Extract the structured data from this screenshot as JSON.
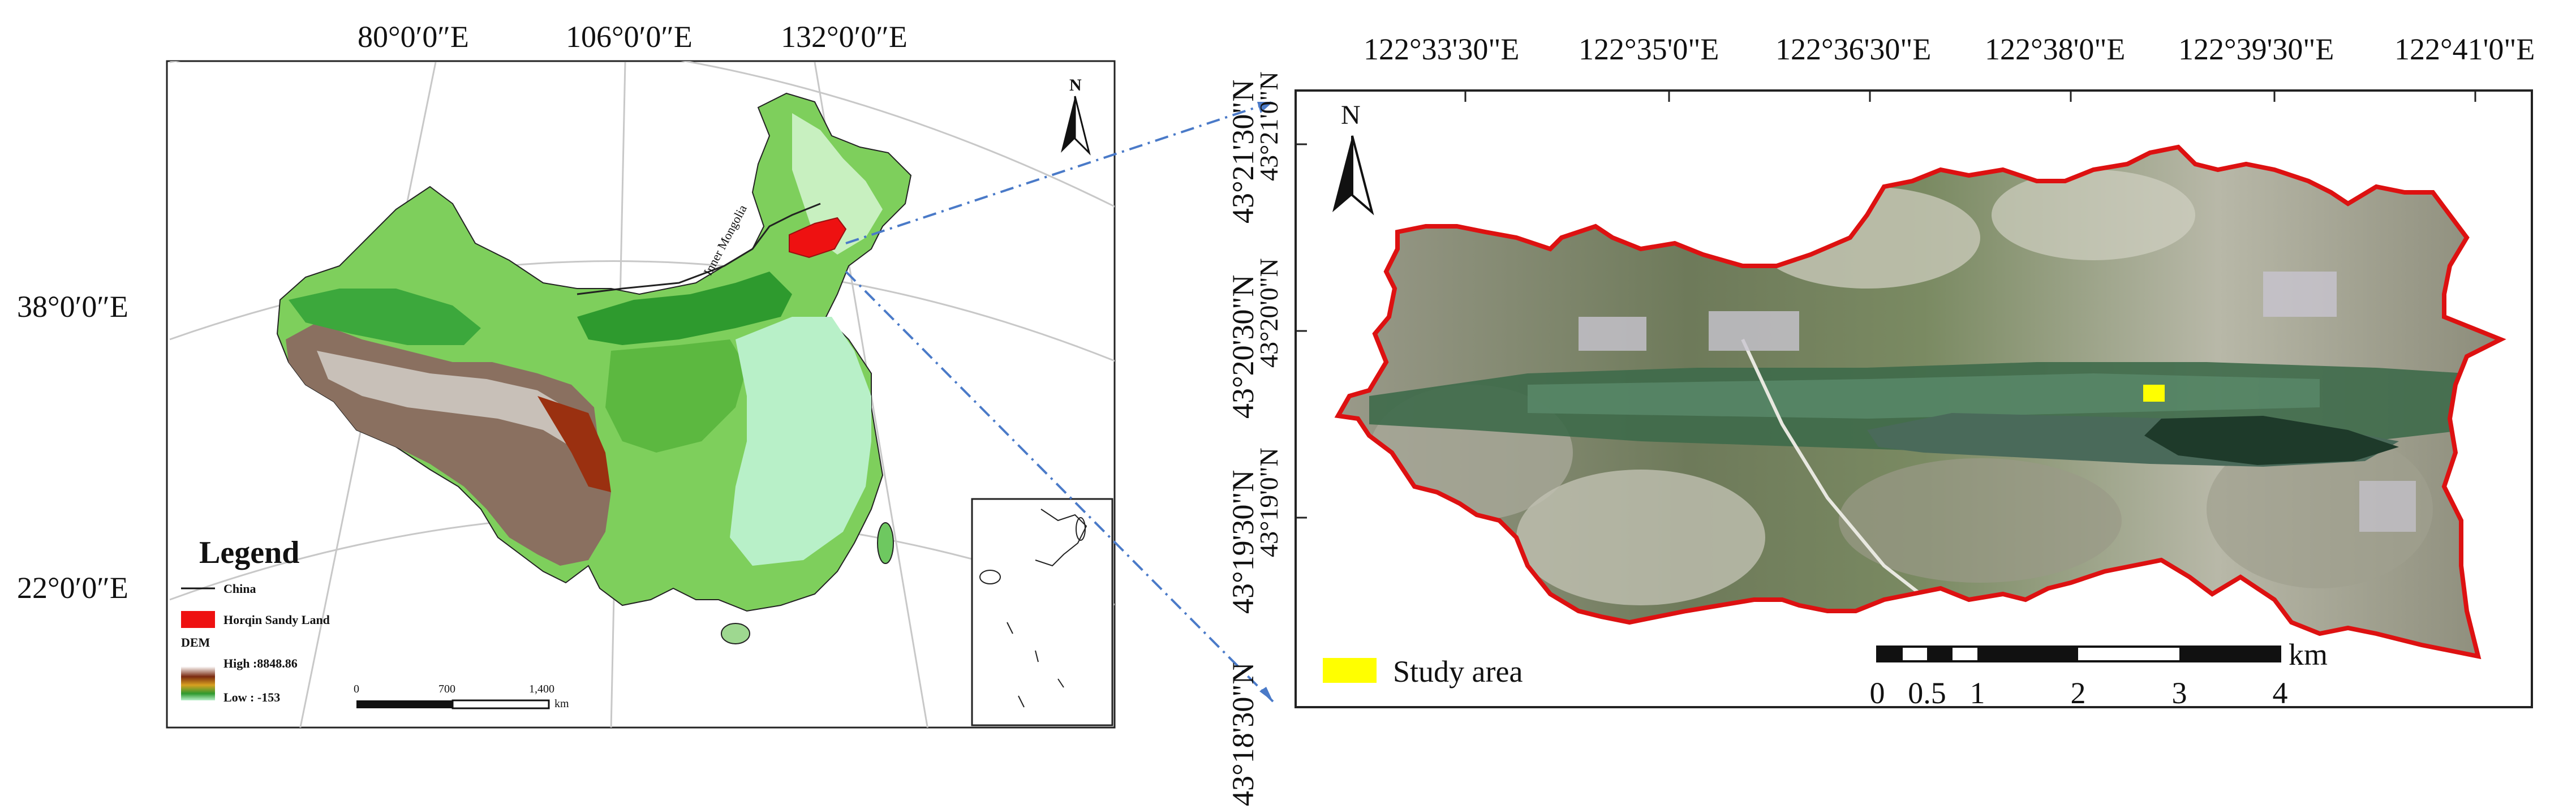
{
  "left_map": {
    "top_longitudes": [
      "80°0′0″E",
      "106°0′0″E",
      "132°0′0″E"
    ],
    "side_latitudes": [
      "38°0′0″E",
      "22°0′0″E"
    ],
    "north_label": "N",
    "region_label": "Inner Mongolia",
    "legend": {
      "title": "Legend",
      "items": [
        {
          "label": "China",
          "symbol": "line"
        },
        {
          "label": "Horqin Sandy Land",
          "symbol": "red-fill",
          "color": "#ee1111"
        }
      ],
      "dem_title": "DEM",
      "dem_high": "High :8848.86",
      "dem_low": "Low : -153"
    },
    "scale": {
      "ticks": [
        "0",
        "700",
        "1,400"
      ],
      "unit": "km"
    }
  },
  "right_map": {
    "top_longitudes": [
      "122°33'30\"E",
      "122°35'0\"E",
      "122°36'30\"E",
      "122°38'0\"E",
      "122°39'30\"E",
      "122°41'0\"E"
    ],
    "left_latitudes": [
      "43°21'30\"N",
      "43°20'30\"N",
      "43°19'30\"N",
      "43°18'30\"N"
    ],
    "mid_latitudes": [
      "43°21'0\"N",
      "43°20'0\"N",
      "43°19'0\"N"
    ],
    "north_label": "N",
    "legend_label": "Study area",
    "legend_color": "#ffff00",
    "boundary_color": "#dd1111",
    "scale": {
      "ticks": [
        "0",
        "0.5",
        "1",
        "2",
        "3",
        "4"
      ],
      "unit": "km"
    }
  }
}
